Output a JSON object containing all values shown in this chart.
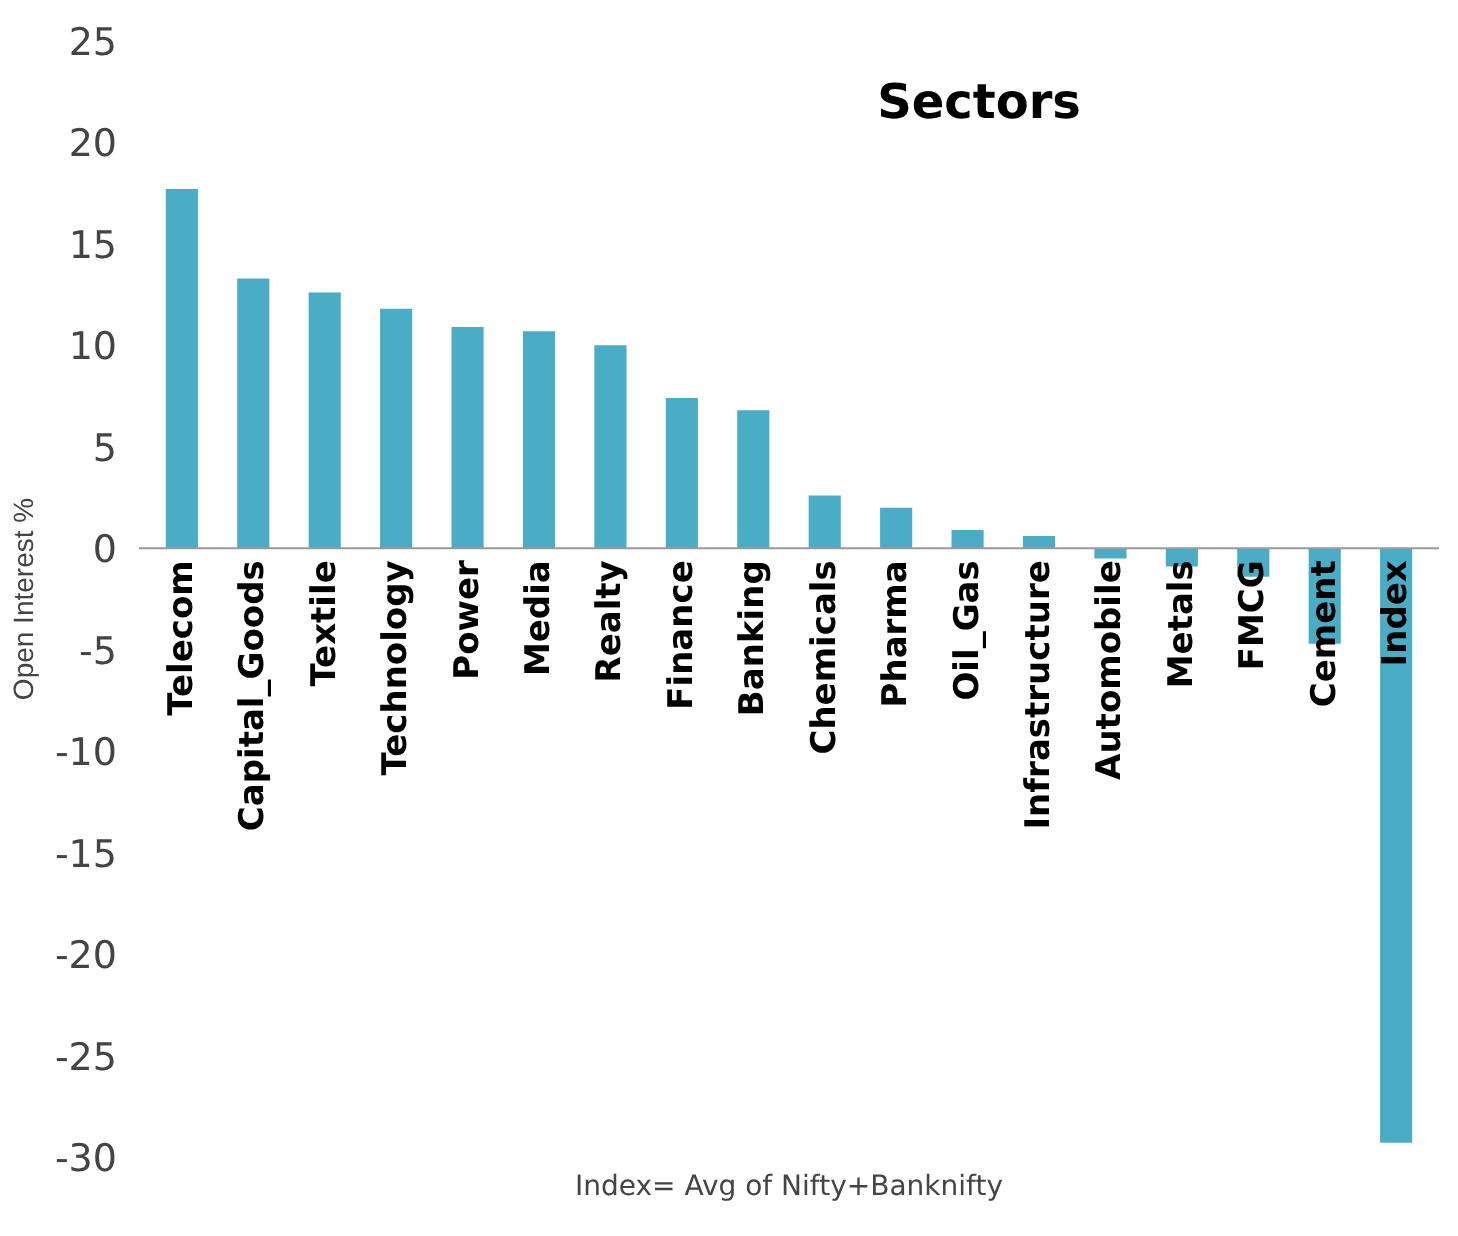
{
  "chart_data": {
    "type": "bar",
    "title": "Sectors",
    "ylabel": "Open Interest %",
    "categories": [
      "Telecom",
      "Capital_Goods",
      "Textile",
      "Technology",
      "Power",
      "Media",
      "Realty",
      "Finance",
      "Banking",
      "Chemicals",
      "Pharma",
      "Oil_Gas",
      "Infrastructure",
      "Automobile",
      "Metals",
      "FMCG",
      "Cement",
      "Index"
    ],
    "values": [
      17.7,
      13.3,
      12.6,
      11.8,
      10.9,
      10.7,
      10.0,
      7.4,
      6.8,
      2.6,
      2.0,
      0.9,
      0.6,
      -0.5,
      -0.9,
      -1.4,
      -4.7,
      -29.3
    ],
    "color": "#4bacc6",
    "ylim": [
      -30,
      25
    ],
    "yticks": [
      -30,
      -25,
      -20,
      -15,
      -10,
      -5,
      0,
      5,
      10,
      15,
      20,
      25
    ],
    "grid": false,
    "annotations": [
      "Index= Avg of Nifty+Banknifty"
    ]
  }
}
